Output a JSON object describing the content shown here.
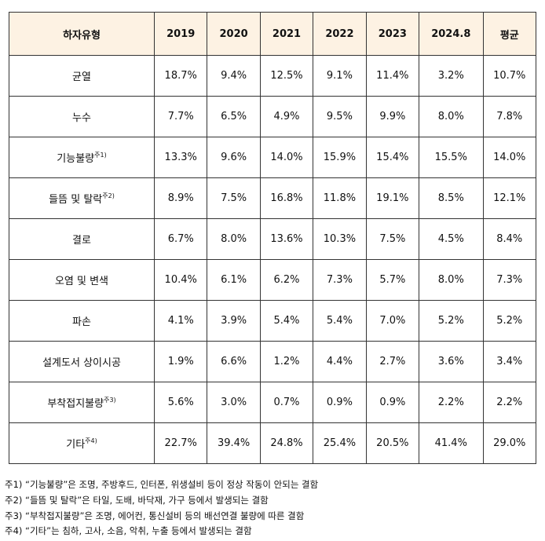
{
  "table": {
    "header": [
      "하자유형",
      "2019",
      "2020",
      "2021",
      "2022",
      "2023",
      "2024.8",
      "평균"
    ],
    "rows": [
      {
        "label": "균열",
        "note": null,
        "cells": [
          "18.7%",
          "9.4%",
          "12.5%",
          "9.1%",
          "11.4%",
          "3.2%",
          "10.7%"
        ]
      },
      {
        "label": "누수",
        "note": null,
        "cells": [
          "7.7%",
          "6.5%",
          "4.9%",
          "9.5%",
          "9.9%",
          "8.0%",
          "7.8%"
        ]
      },
      {
        "label": "기능불량",
        "note": "주1)",
        "cells": [
          "13.3%",
          "9.6%",
          "14.0%",
          "15.9%",
          "15.4%",
          "15.5%",
          "14.0%"
        ]
      },
      {
        "label": "들뜸 및 탈락",
        "note": "주2)",
        "cells": [
          "8.9%",
          "7.5%",
          "16.8%",
          "11.8%",
          "19.1%",
          "8.5%",
          "12.1%"
        ]
      },
      {
        "label": "결로",
        "note": null,
        "cells": [
          "6.7%",
          "8.0%",
          "13.6%",
          "10.3%",
          "7.5%",
          "4.5%",
          "8.4%"
        ]
      },
      {
        "label": "오염 및 변색",
        "note": null,
        "cells": [
          "10.4%",
          "6.1%",
          "6.2%",
          "7.3%",
          "5.7%",
          "8.0%",
          "7.3%"
        ]
      },
      {
        "label": "파손",
        "note": null,
        "cells": [
          "4.1%",
          "3.9%",
          "5.4%",
          "5.4%",
          "7.0%",
          "5.2%",
          "5.2%"
        ]
      },
      {
        "label": "설계도서 상이시공",
        "note": null,
        "cells": [
          "1.9%",
          "6.6%",
          "1.2%",
          "4.4%",
          "2.7%",
          "3.6%",
          "3.4%"
        ]
      },
      {
        "label": "부착접지불량",
        "note": "주3)",
        "cells": [
          "5.6%",
          "3.0%",
          "0.7%",
          "0.9%",
          "0.9%",
          "2.2%",
          "2.2%"
        ]
      },
      {
        "label": "기타",
        "note": "주4)",
        "cells": [
          "22.7%",
          "39.4%",
          "24.8%",
          "25.4%",
          "20.5%",
          "41.4%",
          "29.0%"
        ]
      }
    ]
  },
  "footnotes": [
    "주1) “기능불량”은 조명, 주방후드, 인터폰, 위생설비 등이 정상 작동이 안되는 결함",
    "주2) “들뜸 및 탈락”은 타일, 도배, 바닥재, 가구 등에서 발생되는 결함",
    "주3) “부착접지불량”은 조명, 에어컨, 통신설비 등의 배선연결 불량에 따른 결함",
    "주4) “기타”는 침하, 고사, 소음, 악취, 누출 등에서 발생되는 결함"
  ]
}
